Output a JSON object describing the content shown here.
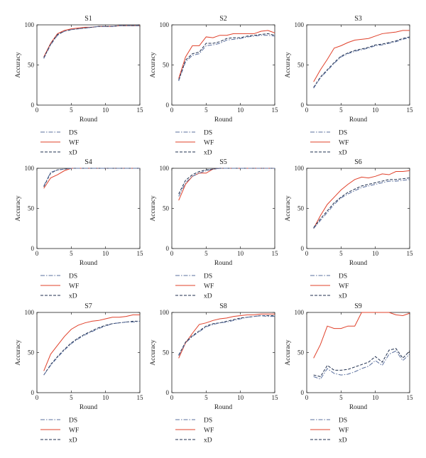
{
  "figure": {
    "background": "#ffffff"
  },
  "styles": {
    "DS": {
      "color": "#5a6f9e",
      "dash": "6 2 1.5 2"
    },
    "WF": {
      "color": "#e0402a",
      "dash": ""
    },
    "xD": {
      "color": "#1f2f4f",
      "dash": "4 2"
    }
  },
  "chart_data": [
    {
      "type": "line",
      "title": "S1",
      "xlabel": "Round",
      "ylabel": "Accuracy",
      "xlim": [
        0,
        15
      ],
      "ylim": [
        0,
        100
      ],
      "xticks": [
        0,
        5,
        10,
        15
      ],
      "yticks": [
        0,
        50,
        100
      ],
      "grid": false,
      "legend": "below",
      "x": [
        1,
        2,
        3,
        4,
        5,
        6,
        7,
        8,
        9,
        10,
        11,
        12,
        13,
        14,
        15
      ],
      "series": [
        {
          "name": "DS",
          "values": [
            58,
            75,
            87,
            92,
            94,
            95,
            96,
            97,
            98,
            98,
            98,
            99,
            99,
            99,
            99
          ]
        },
        {
          "name": "WF",
          "values": [
            60,
            77,
            89,
            93,
            95,
            96,
            97,
            97,
            98,
            98,
            98,
            99,
            99,
            99,
            99
          ]
        },
        {
          "name": "xD",
          "values": [
            59,
            76,
            88,
            92,
            94,
            95,
            96,
            97,
            98,
            98,
            98,
            99,
            99,
            99,
            99
          ]
        }
      ]
    },
    {
      "type": "line",
      "title": "S2",
      "xlabel": "Round",
      "ylabel": "Accuracy",
      "xlim": [
        0,
        15
      ],
      "ylim": [
        0,
        100
      ],
      "xticks": [
        0,
        5,
        10,
        15
      ],
      "yticks": [
        0,
        50,
        100
      ],
      "grid": false,
      "legend": "below",
      "x": [
        1,
        2,
        3,
        4,
        5,
        6,
        7,
        8,
        9,
        10,
        11,
        12,
        13,
        14,
        15
      ],
      "series": [
        {
          "name": "DS",
          "values": [
            30,
            54,
            62,
            64,
            74,
            75,
            77,
            81,
            82,
            83,
            85,
            86,
            87,
            87,
            86
          ]
        },
        {
          "name": "WF",
          "values": [
            33,
            60,
            74,
            74,
            85,
            84,
            87,
            87,
            89,
            89,
            89,
            89,
            92,
            93,
            90
          ]
        },
        {
          "name": "xD",
          "values": [
            31,
            56,
            64,
            66,
            77,
            77,
            79,
            83,
            84,
            84,
            86,
            87,
            88,
            89,
            87
          ]
        }
      ]
    },
    {
      "type": "line",
      "title": "S3",
      "xlabel": "Round",
      "ylabel": "Accuracy",
      "xlim": [
        0,
        15
      ],
      "ylim": [
        0,
        100
      ],
      "xticks": [
        0,
        5,
        10,
        15
      ],
      "yticks": [
        0,
        50,
        100
      ],
      "grid": false,
      "legend": "below",
      "x": [
        1,
        2,
        3,
        4,
        5,
        6,
        7,
        8,
        9,
        10,
        11,
        12,
        13,
        14,
        15
      ],
      "series": [
        {
          "name": "DS",
          "values": [
            21,
            34,
            43,
            52,
            60,
            64,
            67,
            69,
            71,
            74,
            75,
            77,
            79,
            82,
            84
          ]
        },
        {
          "name": "WF",
          "values": [
            29,
            44,
            57,
            71,
            74,
            78,
            81,
            82,
            83,
            86,
            89,
            90,
            91,
            93,
            93
          ]
        },
        {
          "name": "xD",
          "values": [
            22,
            35,
            44,
            53,
            61,
            65,
            68,
            70,
            72,
            75,
            76,
            78,
            80,
            83,
            85
          ]
        }
      ]
    },
    {
      "type": "line",
      "title": "S4",
      "xlabel": "Round",
      "ylabel": "Accuracy",
      "xlim": [
        0,
        15
      ],
      "ylim": [
        0,
        100
      ],
      "xticks": [
        0,
        5,
        10,
        15
      ],
      "yticks": [
        0,
        50,
        100
      ],
      "grid": false,
      "legend": "below",
      "x": [
        1,
        2,
        3,
        4,
        5,
        6,
        7,
        8,
        9,
        10,
        11,
        12,
        13,
        14,
        15
      ],
      "series": [
        {
          "name": "DS",
          "values": [
            78,
            95,
            98,
            99,
            100,
            100,
            100,
            100,
            100,
            100,
            100,
            100,
            100,
            100,
            100
          ]
        },
        {
          "name": "WF",
          "values": [
            75,
            88,
            92,
            97,
            100,
            100,
            100,
            100,
            100,
            100,
            100,
            100,
            100,
            100,
            100
          ]
        },
        {
          "name": "xD",
          "values": [
            77,
            94,
            98,
            99,
            100,
            100,
            100,
            100,
            100,
            100,
            100,
            100,
            100,
            100,
            100
          ]
        }
      ]
    },
    {
      "type": "line",
      "title": "S5",
      "xlabel": "Round",
      "ylabel": "Accuracy",
      "xlim": [
        0,
        15
      ],
      "ylim": [
        0,
        100
      ],
      "xticks": [
        0,
        5,
        10,
        15
      ],
      "yticks": [
        0,
        50,
        100
      ],
      "grid": false,
      "legend": "below",
      "x": [
        1,
        2,
        3,
        4,
        5,
        6,
        7,
        8,
        9,
        10,
        11,
        12,
        13,
        14,
        15
      ],
      "series": [
        {
          "name": "DS",
          "values": [
            65,
            82,
            90,
            94,
            97,
            99,
            100,
            100,
            100,
            100,
            100,
            100,
            100,
            100,
            100
          ]
        },
        {
          "name": "WF",
          "values": [
            60,
            80,
            90,
            94,
            94,
            99,
            100,
            100,
            100,
            100,
            100,
            100,
            100,
            100,
            100
          ]
        },
        {
          "name": "xD",
          "values": [
            68,
            85,
            92,
            96,
            98,
            99,
            100,
            100,
            100,
            100,
            100,
            100,
            100,
            100,
            100
          ]
        }
      ]
    },
    {
      "type": "line",
      "title": "S6",
      "xlabel": "Round",
      "ylabel": "Accuracy",
      "xlim": [
        0,
        15
      ],
      "ylim": [
        0,
        100
      ],
      "xticks": [
        0,
        5,
        10,
        15
      ],
      "yticks": [
        0,
        50,
        100
      ],
      "grid": false,
      "legend": "below",
      "x": [
        1,
        2,
        3,
        4,
        5,
        6,
        7,
        8,
        9,
        10,
        11,
        12,
        13,
        14,
        15
      ],
      "series": [
        {
          "name": "DS",
          "values": [
            25,
            35,
            45,
            55,
            63,
            68,
            72,
            76,
            78,
            80,
            82,
            84,
            84,
            85,
            86
          ]
        },
        {
          "name": "WF",
          "values": [
            25,
            41,
            55,
            64,
            73,
            80,
            86,
            89,
            88,
            90,
            93,
            92,
            96,
            96,
            97
          ]
        },
        {
          "name": "xD",
          "values": [
            26,
            37,
            47,
            57,
            64,
            70,
            74,
            78,
            80,
            82,
            84,
            86,
            86,
            87,
            88
          ]
        }
      ]
    },
    {
      "type": "line",
      "title": "S7",
      "xlabel": "Round",
      "ylabel": "Accuracy",
      "xlim": [
        0,
        15
      ],
      "ylim": [
        0,
        100
      ],
      "xticks": [
        0,
        5,
        10,
        15
      ],
      "yticks": [
        0,
        50,
        100
      ],
      "grid": false,
      "legend": "below",
      "x": [
        1,
        2,
        3,
        4,
        5,
        6,
        7,
        8,
        9,
        10,
        11,
        12,
        13,
        14,
        15
      ],
      "series": [
        {
          "name": "DS",
          "values": [
            22,
            34,
            44,
            53,
            61,
            67,
            72,
            76,
            80,
            83,
            86,
            87,
            88,
            88,
            89
          ]
        },
        {
          "name": "WF",
          "values": [
            27,
            48,
            59,
            70,
            79,
            84,
            87,
            89,
            90,
            92,
            94,
            94,
            95,
            97,
            97
          ]
        },
        {
          "name": "xD",
          "values": [
            22,
            35,
            45,
            54,
            62,
            68,
            73,
            77,
            81,
            84,
            86,
            87,
            88,
            89,
            89
          ]
        }
      ]
    },
    {
      "type": "line",
      "title": "S8",
      "xlabel": "Round",
      "ylabel": "Accuracy",
      "xlim": [
        0,
        15
      ],
      "ylim": [
        0,
        100
      ],
      "xticks": [
        0,
        5,
        10,
        15
      ],
      "yticks": [
        0,
        50,
        100
      ],
      "grid": false,
      "legend": "below",
      "x": [
        1,
        2,
        3,
        4,
        5,
        6,
        7,
        8,
        9,
        10,
        11,
        12,
        13,
        14,
        15
      ],
      "series": [
        {
          "name": "DS",
          "values": [
            46,
            62,
            70,
            76,
            82,
            85,
            87,
            88,
            90,
            92,
            94,
            95,
            96,
            95,
            95
          ]
        },
        {
          "name": "WF",
          "values": [
            43,
            62,
            74,
            85,
            87,
            90,
            92,
            93,
            95,
            96,
            97,
            97,
            98,
            98,
            98
          ]
        },
        {
          "name": "xD",
          "values": [
            47,
            63,
            71,
            77,
            83,
            86,
            87,
            89,
            91,
            93,
            94,
            95,
            96,
            96,
            96
          ]
        }
      ]
    },
    {
      "type": "line",
      "title": "S9",
      "xlabel": "Round",
      "ylabel": "Accuracy",
      "xlim": [
        0,
        15
      ],
      "ylim": [
        0,
        100
      ],
      "xticks": [
        0,
        5,
        10,
        15
      ],
      "yticks": [
        0,
        50,
        100
      ],
      "grid": false,
      "legend": "below",
      "x": [
        1,
        2,
        3,
        4,
        5,
        6,
        7,
        8,
        9,
        10,
        11,
        12,
        13,
        14,
        15
      ],
      "series": [
        {
          "name": "DS",
          "values": [
            20,
            17,
            30,
            24,
            22,
            23,
            26,
            30,
            33,
            40,
            34,
            48,
            52,
            40,
            48
          ]
        },
        {
          "name": "WF",
          "values": [
            43,
            60,
            83,
            80,
            80,
            83,
            83,
            100,
            100,
            100,
            100,
            100,
            97,
            96,
            99
          ]
        },
        {
          "name": "xD",
          "values": [
            22,
            20,
            34,
            28,
            28,
            29,
            32,
            35,
            38,
            45,
            38,
            53,
            55,
            43,
            52
          ]
        }
      ]
    }
  ]
}
